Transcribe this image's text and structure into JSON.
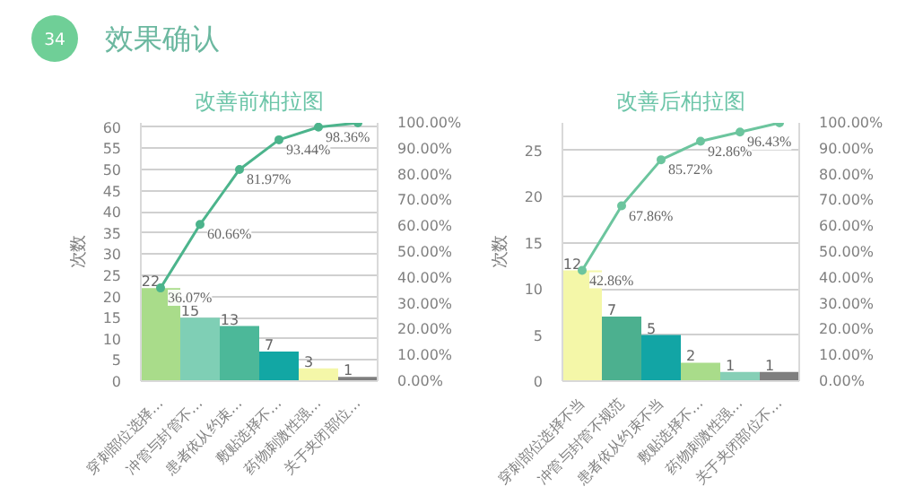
{
  "chart_data": [
    {
      "type": "bar",
      "title": "改善前柏拉图",
      "ylabel": "次数",
      "annotations": [
        "34",
        "效果确认"
      ],
      "categories": [
        "穿刺部位选择…",
        "冲管与封管不…",
        "患者依从约束…",
        "敷贴选择不…",
        "药物刺激性强…",
        "关于夹闭部位…"
      ],
      "series": [
        {
          "colors": [
            "#a9dc8a",
            "#7fcfb5",
            "#4cb899",
            "#12a7a4",
            "#f4f7a8",
            "#7f7f7f"
          ],
          "values": [
            22,
            15,
            13,
            7,
            3,
            1
          ],
          "value_labels": [
            "22",
            "15",
            "13",
            "7",
            "3",
            "1"
          ]
        },
        {
          "type": "line",
          "axis": "y2",
          "color": "#4cb48c",
          "values": [
            36.07,
            60.66,
            81.97,
            93.44,
            98.36,
            100
          ],
          "value_labels": [
            "36.07%",
            "60.66%",
            "81.97%",
            "93.44%",
            "98.36%",
            null
          ]
        }
      ],
      "ylim": [
        0,
        61
      ],
      "yticks": [
        0,
        5,
        10,
        15,
        20,
        25,
        30,
        35,
        40,
        45,
        50,
        55,
        60
      ],
      "y2lim": [
        0,
        100
      ],
      "y2ticks": [
        {
          "value": 0,
          "label": "0.00%"
        },
        {
          "value": 10,
          "label": "10.00%"
        },
        {
          "value": 20,
          "label": "20.00%"
        },
        {
          "value": 30,
          "label": "30.00%"
        },
        {
          "value": 40,
          "label": "40.00%"
        },
        {
          "value": 50,
          "label": "50.00%"
        },
        {
          "value": 60,
          "label": "60.00%"
        },
        {
          "value": 70,
          "label": "70.00%"
        },
        {
          "value": 80,
          "label": "80.00%"
        },
        {
          "value": 90,
          "label": "90.00%"
        },
        {
          "value": 100,
          "label": "100.00%"
        }
      ],
      "grid": "y",
      "marker": "circle"
    },
    {
      "type": "bar",
      "title": "改善后柏拉图",
      "ylabel": "次数",
      "categories": [
        "穿刺部位选择不当",
        "冲管与封管不规范",
        "患者依从约束不当",
        "敷贴选择不…",
        "药物刺激性强…",
        "关于夹闭部位不…"
      ],
      "series": [
        {
          "colors": [
            "#f4f7a8",
            "#4cb08f",
            "#12a5a5",
            "#a9dc8a",
            "#86cfb6",
            "#7f7f7f"
          ],
          "values": [
            12,
            7,
            5,
            2,
            1,
            1
          ],
          "value_labels": [
            "12",
            "7",
            "5",
            "2",
            "1",
            "1"
          ]
        },
        {
          "type": "line",
          "axis": "y2",
          "color": "#6cc59e",
          "values": [
            42.86,
            67.86,
            85.72,
            92.86,
            96.43,
            100
          ],
          "value_labels": [
            "42.86%",
            "67.86%",
            "85.72%",
            "92.86%",
            "96.43%",
            null
          ]
        }
      ],
      "ylim": [
        0,
        28
      ],
      "yticks": [
        0,
        5,
        10,
        15,
        20,
        25
      ],
      "y2lim": [
        0,
        100
      ],
      "y2ticks": [
        {
          "value": 0,
          "label": "0.00%"
        },
        {
          "value": 10,
          "label": "10.00%"
        },
        {
          "value": 20,
          "label": "20.00%"
        },
        {
          "value": 30,
          "label": "30.00%"
        },
        {
          "value": 40,
          "label": "40.00%"
        },
        {
          "value": 50,
          "label": "50.00%"
        },
        {
          "value": 60,
          "label": "60.00%"
        },
        {
          "value": 70,
          "label": "70.00%"
        },
        {
          "value": 80,
          "label": "80.00%"
        },
        {
          "value": 90,
          "label": "90.00%"
        },
        {
          "value": 100,
          "label": "100.00%"
        }
      ],
      "grid": "y",
      "marker": "circle"
    }
  ]
}
